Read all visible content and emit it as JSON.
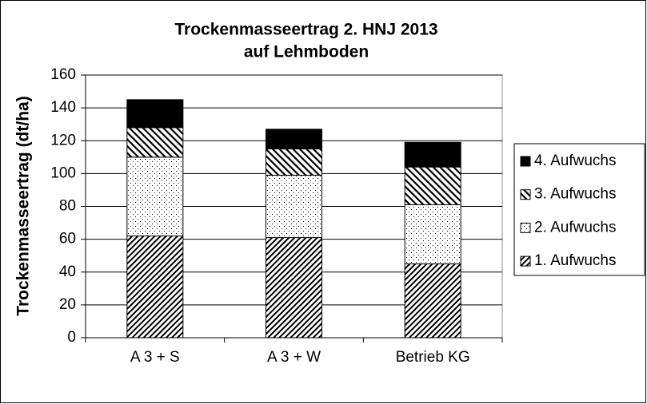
{
  "chart_data": {
    "type": "stacked-bar",
    "title": [
      "Trockenmasseertrag 2. HNJ 2013",
      "auf Lehmboden"
    ],
    "y_label": "Trockenmasseertrag (dt/ha)",
    "categories": [
      "A 3 + S",
      "A 3 + W",
      "Betrieb KG"
    ],
    "series": [
      {
        "name": "1. Aufwuchs",
        "color": "#000000",
        "pattern": "forward-hatch",
        "values": [
          62,
          61,
          45
        ]
      },
      {
        "name": "2. Aufwuchs",
        "color": "#000000",
        "pattern": "dots",
        "values": [
          48,
          38,
          36
        ]
      },
      {
        "name": "3. Aufwuchs",
        "color": "#000000",
        "pattern": "back-hatch",
        "values": [
          18,
          16,
          23
        ]
      },
      {
        "name": "4. Aufwuchs",
        "color": "#000000",
        "pattern": "solid",
        "values": [
          17,
          12,
          15
        ]
      }
    ],
    "ylim": [
      0,
      160
    ],
    "yticks": [
      0,
      20,
      40,
      60,
      80,
      100,
      120,
      140,
      160
    ],
    "grid": true,
    "legend": "right"
  }
}
